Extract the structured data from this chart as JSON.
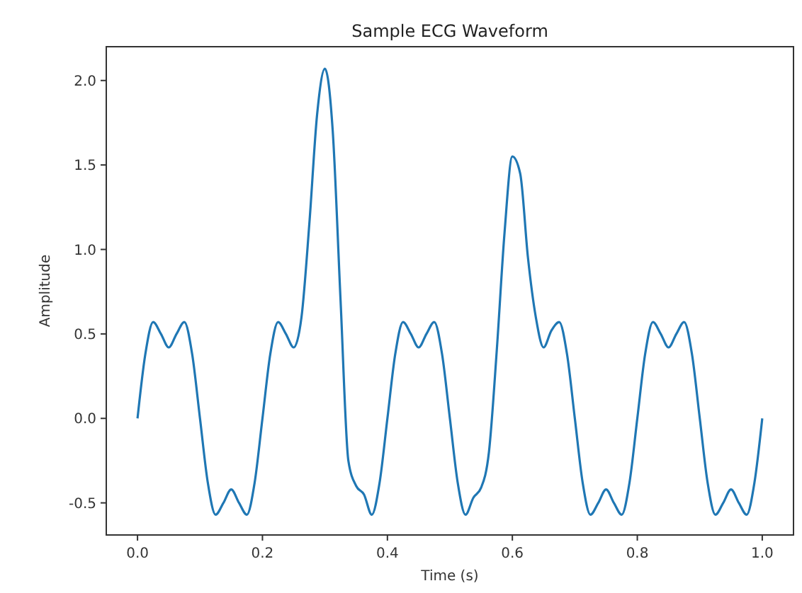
{
  "chart_data": {
    "type": "line",
    "title": "Sample ECG Waveform",
    "xlabel": "Time (s)",
    "ylabel": "Amplitude",
    "xlim": [
      -0.05,
      1.05
    ],
    "xticks": [
      {
        "value": 0,
        "label": "0.0"
      },
      0.2,
      0.4,
      0.6,
      0.8,
      {
        "value": 1,
        "label": "1.0"
      }
    ],
    "ylim": [
      -0.69,
      2.2
    ],
    "yticks": [
      -0.5,
      {
        "value": 0,
        "label": "0.0"
      },
      0.5,
      {
        "value": 1,
        "label": "1.0"
      },
      1.5,
      {
        "value": 2,
        "label": "2.0"
      }
    ],
    "grid": false,
    "marker": "none",
    "line_style": "solid",
    "series": [
      {
        "color": "#1f77b4",
        "x": [
          0,
          0.0125,
          0.025,
          0.0375,
          0.05,
          0.0625,
          0.075,
          0.0875,
          0.1,
          0.1125,
          0.125,
          0.1375,
          0.15,
          0.1625,
          0.175,
          0.1875,
          0.2,
          0.2125,
          0.225,
          0.2375,
          0.25,
          0.2625,
          0.275,
          0.2875,
          0.3,
          0.3125,
          0.325,
          0.3375,
          0.35,
          0.3625,
          0.375,
          0.3875,
          0.4,
          0.4125,
          0.425,
          0.4375,
          0.45,
          0.4625,
          0.475,
          0.4875,
          0.5,
          0.5125,
          0.525,
          0.5375,
          0.55,
          0.5625,
          0.575,
          0.5875,
          0.6,
          0.6125,
          0.625,
          0.6375,
          0.65,
          0.6625,
          0.675,
          0.6875,
          0.7,
          0.7125,
          0.725,
          0.7375,
          0.75,
          0.7625,
          0.775,
          0.7875,
          0.8,
          0.8125,
          0.825,
          0.8375,
          0.85,
          0.8625,
          0.875,
          0.8875,
          0.9,
          0.9125,
          0.925,
          0.9375,
          0.95,
          0.9625,
          0.975,
          0.9875,
          1
        ],
        "values": [
          0,
          0.38,
          0.57,
          0.5,
          0.42,
          0.5,
          0.57,
          0.38,
          0,
          -0.38,
          -0.57,
          -0.5,
          -0.42,
          -0.5,
          -0.57,
          -0.38,
          0,
          0.38,
          0.57,
          0.5,
          0.42,
          0.6,
          1.15,
          1.8,
          2.07,
          1.7,
          0.7,
          -0.25,
          -0.4,
          -0.45,
          -0.57,
          -0.38,
          0,
          0.38,
          0.57,
          0.5,
          0.42,
          0.5,
          0.57,
          0.38,
          0,
          -0.38,
          -0.57,
          -0.47,
          -0.41,
          -0.2,
          0.4,
          1.1,
          1.55,
          1.45,
          0.95,
          0.6,
          0.42,
          0.52,
          0.57,
          0.38,
          0,
          -0.38,
          -0.57,
          -0.5,
          -0.42,
          -0.5,
          -0.57,
          -0.38,
          0,
          0.38,
          0.57,
          0.5,
          0.42,
          0.5,
          0.57,
          0.38,
          0,
          -0.38,
          -0.57,
          -0.5,
          -0.42,
          -0.5,
          -0.57,
          -0.38,
          0
        ]
      }
    ]
  }
}
